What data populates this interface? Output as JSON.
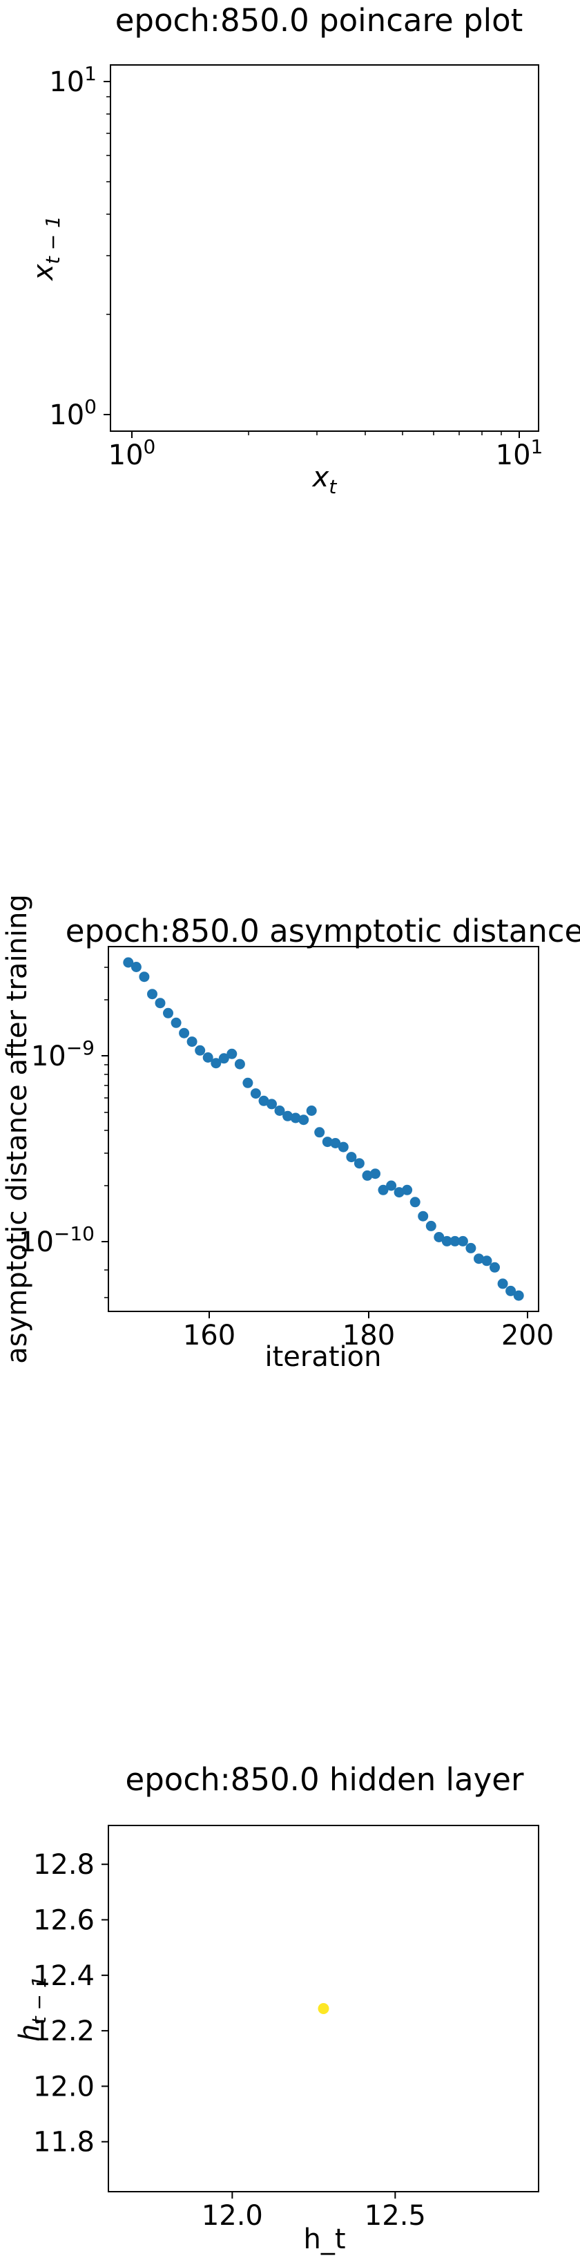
{
  "chart_data": [
    {
      "type": "scatter",
      "title": "epoch:850.0 poincare plot",
      "xlabel": "x_t",
      "ylabel": "x_{t-1}",
      "xscale": "log",
      "yscale": "log",
      "xlim": [
        0.9,
        11.5
      ],
      "ylim": [
        0.9,
        11.5
      ],
      "x_ticks": [
        "10^0",
        "10^1"
      ],
      "y_ticks": [
        "10^0",
        "10^1"
      ],
      "points": []
    },
    {
      "type": "scatter",
      "title": "epoch:850.0 asymptotic distance",
      "xlabel": "iteration",
      "ylabel": "asymptotic distance after training",
      "yscale": "log",
      "xlim": [
        147.5,
        201.5
      ],
      "ylim": [
        4.3e-11,
        3.45e-09
      ],
      "x_ticks": [
        "160",
        "180",
        "200"
      ],
      "y_ticks": [
        "10^{-9}",
        "10^{-10}"
      ],
      "color": "#1f77b4",
      "x": [
        150,
        151,
        152,
        153,
        154,
        155,
        156,
        157,
        158,
        159,
        160,
        161,
        162,
        163,
        164,
        165,
        166,
        167,
        168,
        169,
        170,
        171,
        172,
        173,
        174,
        175,
        176,
        177,
        178,
        179,
        180,
        181,
        182,
        183,
        184,
        185,
        186,
        187,
        188,
        189,
        190,
        191,
        192,
        193,
        194,
        195,
        196,
        197,
        198,
        199
      ],
      "y": [
        2.85e-09,
        2.7e-09,
        2.4e-09,
        1.95e-09,
        1.75e-09,
        1.55e-09,
        1.38e-09,
        1.22e-09,
        1.1e-09,
        9.9e-10,
        9.1e-10,
        8.5e-10,
        9e-10,
        9.5e-10,
        8.4e-10,
        6.7e-10,
        5.9e-10,
        5.4e-10,
        5.2e-10,
        4.8e-10,
        4.5e-10,
        4.4e-10,
        4.3e-10,
        4.8e-10,
        3.7e-10,
        3.3e-10,
        3.25e-10,
        3.1e-10,
        2.75e-10,
        2.55e-10,
        2.2e-10,
        2.25e-10,
        1.85e-10,
        1.95e-10,
        1.8e-10,
        1.85e-10,
        1.6e-10,
        1.35e-10,
        1.2e-10,
        1.05e-10,
        1e-10,
        1e-10,
        1e-10,
        9.2e-11,
        8.1e-11,
        7.9e-11,
        7.3e-11,
        6e-11,
        5.5e-11,
        5.2e-11
      ]
    },
    {
      "type": "scatter",
      "title": "epoch:850.0 hidden layer",
      "xlabel": "h_t",
      "ylabel": "h_{t-1}",
      "xlim": [
        11.62,
        12.94
      ],
      "ylim": [
        11.62,
        12.94
      ],
      "x_ticks": [
        12.0,
        12.5
      ],
      "y_ticks": [
        11.8,
        12.0,
        12.2,
        12.4,
        12.6,
        12.8
      ],
      "color": "#fde725",
      "x": [
        12.28
      ],
      "y": [
        12.28
      ]
    }
  ]
}
